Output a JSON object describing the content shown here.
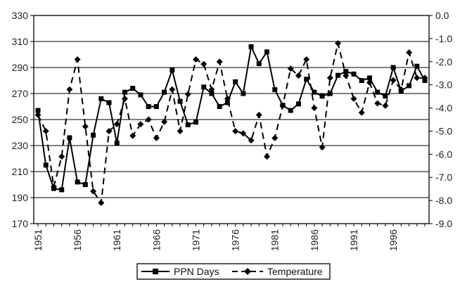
{
  "chart_data": {
    "type": "line",
    "title": "",
    "xlabel": "",
    "ylabel": "",
    "y2label": "",
    "x": [
      1951,
      1952,
      1953,
      1954,
      1955,
      1956,
      1957,
      1958,
      1959,
      1960,
      1961,
      1962,
      1963,
      1964,
      1965,
      1966,
      1967,
      1968,
      1969,
      1970,
      1971,
      1972,
      1973,
      1974,
      1975,
      1976,
      1977,
      1978,
      1979,
      1980,
      1981,
      1982,
      1983,
      1984,
      1985,
      1986,
      1987,
      1988,
      1989,
      1990,
      1991,
      1992,
      1993,
      1994,
      1995,
      1996,
      1997,
      1998,
      1999,
      2000
    ],
    "xticks": [
      1951,
      1956,
      1961,
      1966,
      1971,
      1976,
      1981,
      1986,
      1991,
      1996
    ],
    "xtick_labels": [
      "1951",
      "1956",
      "1961",
      "1966",
      "1971",
      "1976",
      "1981",
      "1986",
      "1991",
      "1996"
    ],
    "ylim": [
      170,
      330
    ],
    "yticks": [
      170,
      190,
      210,
      230,
      250,
      270,
      290,
      310,
      330
    ],
    "ytick_labels": [
      "170",
      "190",
      "210",
      "230",
      "250",
      "270",
      "290",
      "310",
      "330"
    ],
    "y2lim": [
      -9.0,
      0.0
    ],
    "y2ticks": [
      -9.0,
      -8.0,
      -7.0,
      -6.0,
      -5.0,
      -4.0,
      -3.0,
      -2.0,
      -1.0,
      0.0
    ],
    "y2tick_labels": [
      "-9.0",
      "-8.0",
      "-7.0",
      "-6.0",
      "-5.0",
      "-4.0",
      "-3.0",
      "-2.0",
      "-1.0",
      "0.0"
    ],
    "grid": "horizontal",
    "legend_position": "bottom",
    "series": [
      {
        "name": "PPN Days",
        "axis": "left",
        "style": "solid",
        "marker": "square",
        "color": "#000000",
        "values": [
          257,
          215,
          197,
          196,
          236,
          202,
          200,
          238,
          266,
          263,
          232,
          271,
          274,
          269,
          260,
          260,
          271,
          288,
          264,
          246,
          248,
          275,
          270,
          260,
          263,
          279,
          270,
          306,
          293,
          302,
          273,
          261,
          257,
          262,
          281,
          271,
          268,
          270,
          284,
          287,
          285,
          280,
          282,
          271,
          268,
          290,
          272,
          276,
          291,
          280
        ]
      },
      {
        "name": "Temperature",
        "axis": "right",
        "style": "dashed",
        "marker": "diamond",
        "color": "#000000",
        "values": [
          -4.3,
          -5.0,
          -7.4,
          -6.1,
          -3.2,
          -1.9,
          -4.8,
          -7.6,
          -8.1,
          -5.0,
          -4.7,
          -3.6,
          -5.2,
          -4.7,
          -4.5,
          -5.3,
          -4.6,
          -3.2,
          -5.0,
          -3.4,
          -1.9,
          -2.1,
          -3.2,
          -2.0,
          -3.6,
          -5.0,
          -5.1,
          -5.4,
          -4.3,
          -6.1,
          -5.3,
          -3.9,
          -2.3,
          -2.6,
          -1.9,
          -4.0,
          -5.7,
          -2.7,
          -1.2,
          -2.6,
          -3.6,
          -4.2,
          -2.9,
          -3.8,
          -3.9,
          -2.8,
          -3.2,
          -1.6,
          -2.7,
          -2.7
        ]
      }
    ]
  }
}
